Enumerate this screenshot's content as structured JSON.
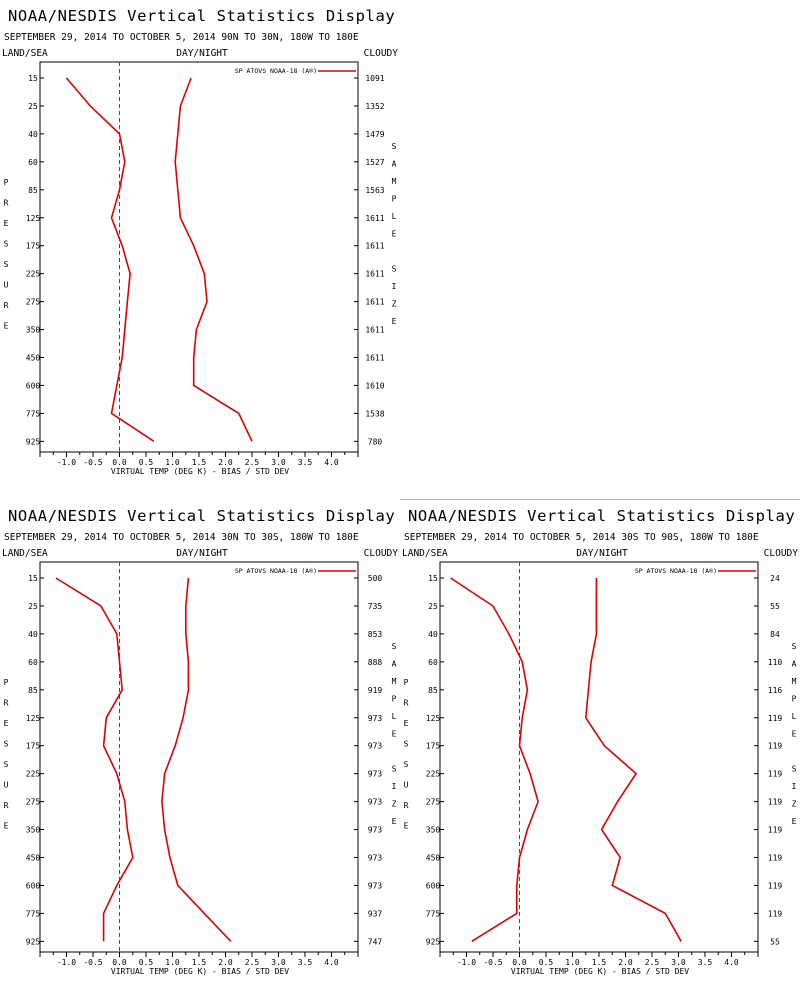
{
  "chart_data": [
    {
      "type": "line",
      "title": "NOAA/NESDIS Vertical Statistics Display",
      "subtitle": "SEPTEMBER 29, 2014 TO OCTOBER 5, 2014 90N TO 30N, 180W TO 180E",
      "corner_left": "LAND/SEA",
      "corner_center": "DAY/NIGHT",
      "corner_right": "CLOUDY",
      "ylabel": "PRESSURE",
      "ylabel_right": "SAMPLE SIZE",
      "xlabel": "VIRTUAL TEMP (DEG K) - BIAS / STD DEV",
      "xlim": [
        -1.5,
        4.5
      ],
      "x_ticks": [
        "-1.0",
        "-0.5",
        "0.0",
        "0.5",
        "1.0",
        "1.5",
        "2.0",
        "2.5",
        "3.0",
        "3.5",
        "4.0"
      ],
      "legend": "SP ATOVS NOAA-18 (A®)",
      "series_color": "#e00000",
      "pressure_levels": [
        "15",
        "25",
        "40",
        "60",
        "85",
        "125",
        "175",
        "225",
        "275",
        "350",
        "450",
        "600",
        "775",
        "925"
      ],
      "sample_sizes": [
        "1091",
        "1352",
        "1479",
        "1527",
        "1563",
        "1611",
        "1611",
        "1611",
        "1611",
        "1611",
        "1611",
        "1610",
        "1538",
        "780"
      ],
      "series": [
        {
          "values": [
            -1.0,
            -0.55,
            0.0,
            0.1,
            0.0,
            -0.15,
            0.05,
            0.2,
            0.15,
            0.1,
            0.05,
            -0.05,
            -0.15,
            0.65
          ]
        },
        {
          "values": [
            1.35,
            1.15,
            1.1,
            1.05,
            1.1,
            1.15,
            1.4,
            1.6,
            1.65,
            1.45,
            1.4,
            1.4,
            2.25,
            2.5
          ]
        }
      ]
    },
    {
      "type": "line",
      "title": "NOAA/NESDIS Vertical Statistics Display",
      "subtitle": "SEPTEMBER 29, 2014 TO OCTOBER 5, 2014 30N TO 30S, 180W TO 180E",
      "corner_left": "LAND/SEA",
      "corner_center": "DAY/NIGHT",
      "corner_right": "CLOUDY",
      "ylabel": "PRESSURE",
      "ylabel_right": "SAMPLE SIZE",
      "xlabel": "VIRTUAL TEMP (DEG K) - BIAS / STD DEV",
      "xlim": [
        -1.5,
        4.5
      ],
      "x_ticks": [
        "-1.0",
        "-0.5",
        "0.0",
        "0.5",
        "1.0",
        "1.5",
        "2.0",
        "2.5",
        "3.0",
        "3.5",
        "4.0"
      ],
      "legend": "SP ATOVS NOAA-18 (A®)",
      "series_color": "#e00000",
      "pressure_levels": [
        "15",
        "25",
        "40",
        "60",
        "85",
        "125",
        "175",
        "225",
        "275",
        "350",
        "450",
        "600",
        "775",
        "925"
      ],
      "sample_sizes": [
        "500",
        "735",
        "853",
        "888",
        "919",
        "973",
        "973",
        "973",
        "973",
        "973",
        "973",
        "973",
        "937",
        "747"
      ],
      "series": [
        {
          "values": [
            -1.2,
            -0.35,
            -0.05,
            0.0,
            0.05,
            -0.25,
            -0.3,
            -0.05,
            0.1,
            0.15,
            0.25,
            -0.05,
            -0.3,
            -0.3
          ]
        },
        {
          "values": [
            1.3,
            1.25,
            1.25,
            1.3,
            1.3,
            1.2,
            1.05,
            0.85,
            0.8,
            0.85,
            0.95,
            1.1,
            1.6,
            2.1
          ]
        }
      ]
    },
    {
      "type": "line",
      "title": "NOAA/NESDIS Vertical Statistics Display",
      "subtitle": "SEPTEMBER 29, 2014 TO OCTOBER 5, 2014 30S TO 90S, 180W TO 180E",
      "corner_left": "LAND/SEA",
      "corner_center": "DAY/NIGHT",
      "corner_right": "CLOUDY",
      "ylabel": "PRESSURE",
      "ylabel_right": "SAMPLE SIZE",
      "xlabel": "VIRTUAL TEMP (DEG K) - BIAS / STD DEV",
      "xlim": [
        -1.5,
        4.5
      ],
      "x_ticks": [
        "-1.0",
        "-0.5",
        "0.0",
        "0.5",
        "1.0",
        "1.5",
        "2.0",
        "2.5",
        "3.0",
        "3.5",
        "4.0"
      ],
      "legend": "SP ATOVS NOAA-18 (A®)",
      "series_color": "#e00000",
      "pressure_levels": [
        "15",
        "25",
        "40",
        "60",
        "85",
        "125",
        "175",
        "225",
        "275",
        "350",
        "450",
        "600",
        "775",
        "925"
      ],
      "sample_sizes": [
        "24",
        "55",
        "84",
        "110",
        "116",
        "119",
        "119",
        "119",
        "119",
        "119",
        "119",
        "119",
        "119",
        "55"
      ],
      "series": [
        {
          "values": [
            -1.3,
            -0.5,
            -0.2,
            0.05,
            0.15,
            0.05,
            0.0,
            0.2,
            0.35,
            0.15,
            0.0,
            -0.05,
            -0.05,
            -0.9
          ]
        },
        {
          "values": [
            1.45,
            1.45,
            1.45,
            1.35,
            1.3,
            1.25,
            1.6,
            2.2,
            1.85,
            1.55,
            1.9,
            1.75,
            2.75,
            3.05
          ]
        }
      ]
    }
  ]
}
